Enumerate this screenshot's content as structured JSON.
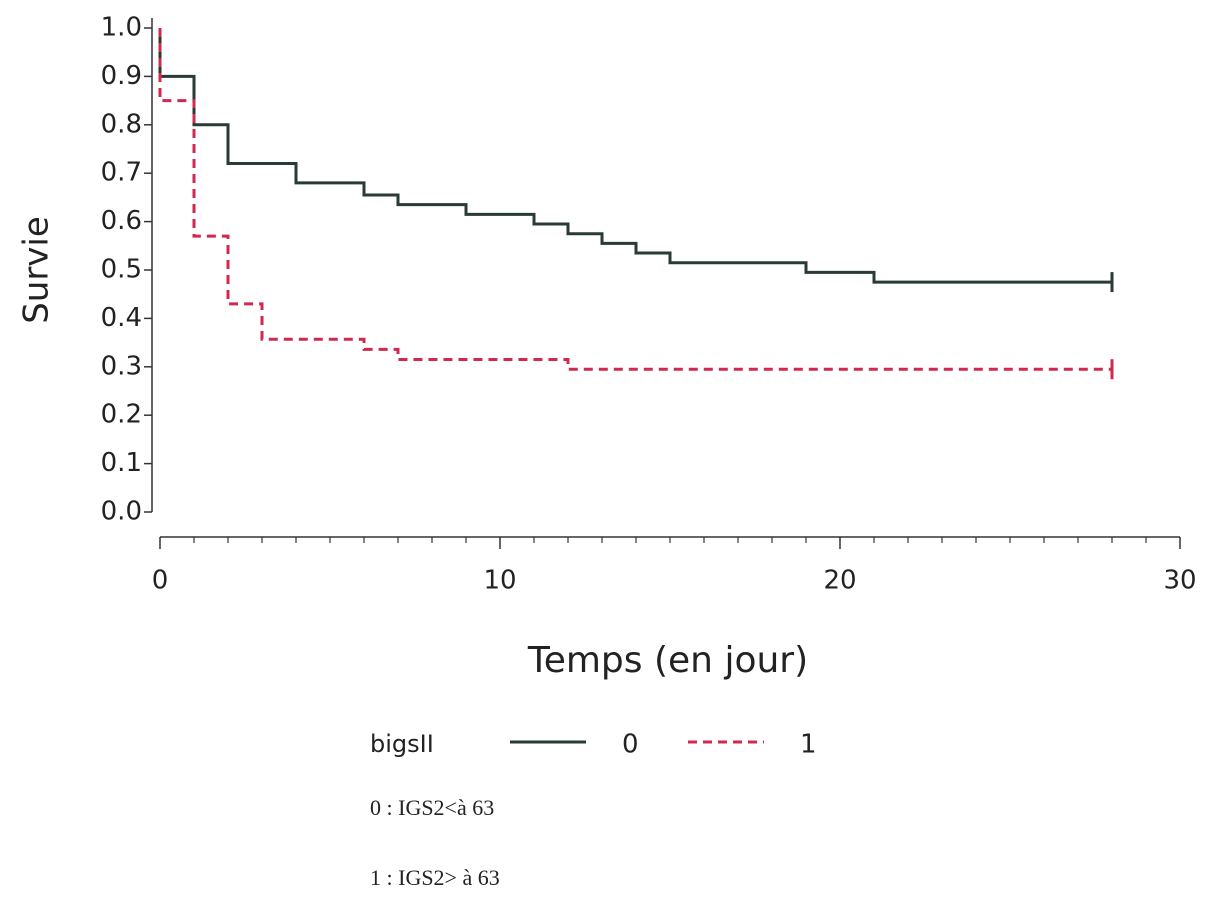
{
  "chart_data": {
    "type": "step",
    "ylabel": "Survie",
    "xlabel": "Temps (en jour)",
    "xlim": [
      0,
      30
    ],
    "xticks": [
      0,
      10,
      20,
      30
    ],
    "xminorticks": [
      1,
      2,
      3,
      4,
      5,
      6,
      7,
      8,
      9,
      11,
      12,
      13,
      14,
      15,
      16,
      17,
      18,
      19,
      21,
      22,
      23,
      24,
      25,
      26,
      27,
      28,
      29
    ],
    "ylim": [
      0,
      1
    ],
    "yticks": [
      {
        "value": 0,
        "label": "0.0"
      },
      {
        "value": 0.1,
        "label": "0.1"
      },
      {
        "value": 0.2,
        "label": "0.2"
      },
      {
        "value": 0.3,
        "label": "0.3"
      },
      {
        "value": 0.4,
        "label": "0.4"
      },
      {
        "value": 0.5,
        "label": "0.5"
      },
      {
        "value": 0.6,
        "label": "0.6"
      },
      {
        "value": 0.7,
        "label": "0.7"
      },
      {
        "value": 0.8,
        "label": "0.8"
      },
      {
        "value": 0.9,
        "label": "0.9"
      },
      {
        "value": 1,
        "label": "1.0"
      }
    ],
    "legend_title": "bigsII",
    "series": [
      {
        "name": "0",
        "color": "#2a3a35",
        "dash": false,
        "x": [
          0,
          0,
          1,
          2,
          4,
          6,
          7,
          9,
          11,
          12,
          13,
          14,
          15,
          19,
          21,
          28
        ],
        "values": [
          1.0,
          0.9,
          0.8,
          0.72,
          0.68,
          0.655,
          0.635,
          0.615,
          0.595,
          0.575,
          0.555,
          0.535,
          0.515,
          0.495,
          0.475,
          0.475
        ]
      },
      {
        "name": "1",
        "color": "#d0284e",
        "dash": true,
        "x": [
          0,
          0,
          1,
          2,
          3,
          6,
          7,
          12,
          28
        ],
        "values": [
          1.0,
          0.85,
          0.57,
          0.43,
          0.357,
          0.336,
          0.315,
          0.295,
          0.295
        ]
      }
    ]
  },
  "notes": [
    "0 : IGS2<à 63",
    "1 : IGS2> à 63"
  ]
}
